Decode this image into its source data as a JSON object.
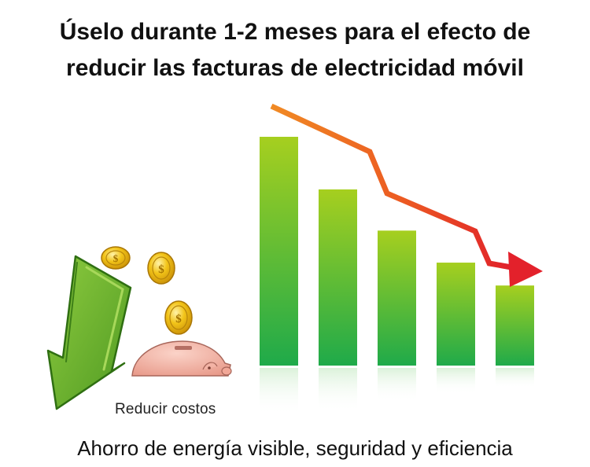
{
  "headline": {
    "line1": "Úselo durante 1-2 meses para el efecto de",
    "line2": "reducir las facturas de electricidad móvil"
  },
  "illustration": {
    "icons": [
      "down-arrow-icon",
      "gold-coin-icon",
      "piggy-bank-icon",
      "trend-arrow-icon"
    ],
    "caption": "Reducir costos"
  },
  "chart_data": {
    "type": "bar",
    "values": [
      100,
      77,
      59,
      45,
      35
    ],
    "ylim": [
      0,
      100
    ],
    "trend": "decreasing",
    "bar_gradient": [
      "#a6cf1f",
      "#1faa4a"
    ],
    "trend_gradient": [
      "#f08a24",
      "#e0202a"
    ]
  },
  "footer": {
    "text": "Ahorro de energía visible, seguridad y eficiencia"
  },
  "colors": {
    "arrow_green": "#6fae2d",
    "coin_gold": "#e9b714",
    "piggy_pink": "#f3b3a5"
  }
}
